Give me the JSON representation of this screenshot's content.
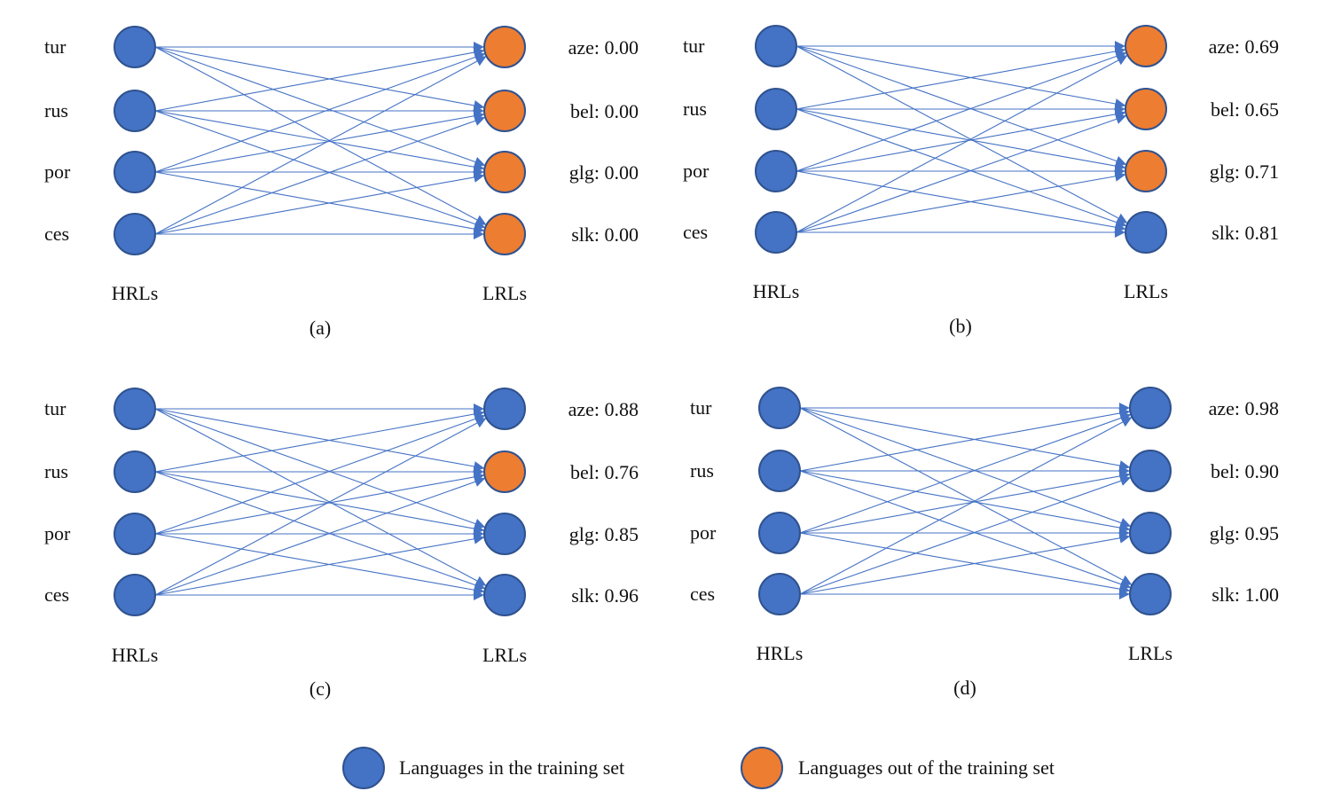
{
  "colors": {
    "in_training": "#4472C4",
    "out_of_training": "#ED7D31",
    "outline": "#2F528F",
    "edge": "#4472C4"
  },
  "panels": [
    {
      "caption": "(a)",
      "left_title": "HRLs",
      "right_title": "LRLs",
      "hrls": [
        "tur",
        "rus",
        "por",
        "ces"
      ],
      "lrls": [
        {
          "label": "aze: 0.00",
          "in_training": false
        },
        {
          "label": "bel: 0.00",
          "in_training": false
        },
        {
          "label": "glg: 0.00",
          "in_training": false
        },
        {
          "label": "slk: 0.00",
          "in_training": false
        }
      ]
    },
    {
      "caption": "(b)",
      "left_title": "HRLs",
      "right_title": "LRLs",
      "hrls": [
        "tur",
        "rus",
        "por",
        "ces"
      ],
      "lrls": [
        {
          "label": "aze: 0.69",
          "in_training": false
        },
        {
          "label": "bel: 0.65",
          "in_training": false
        },
        {
          "label": "glg: 0.71",
          "in_training": false
        },
        {
          "label": "slk: 0.81",
          "in_training": true
        }
      ]
    },
    {
      "caption": "(c)",
      "left_title": "HRLs",
      "right_title": "LRLs",
      "hrls": [
        "tur",
        "rus",
        "por",
        "ces"
      ],
      "lrls": [
        {
          "label": "aze: 0.88",
          "in_training": true
        },
        {
          "label": "bel: 0.76",
          "in_training": false
        },
        {
          "label": "glg: 0.85",
          "in_training": true
        },
        {
          "label": "slk: 0.96",
          "in_training": true
        }
      ]
    },
    {
      "caption": "(d)",
      "left_title": "HRLs",
      "right_title": "LRLs",
      "hrls": [
        "tur",
        "rus",
        "por",
        "ces"
      ],
      "lrls": [
        {
          "label": "aze: 0.98",
          "in_training": true
        },
        {
          "label": "bel: 0.90",
          "in_training": true
        },
        {
          "label": "glg: 0.95",
          "in_training": true
        },
        {
          "label": "slk: 1.00",
          "in_training": true
        }
      ]
    }
  ],
  "legend": {
    "in_training": "Languages in the training set",
    "out_of_training": "Languages out of the training set"
  }
}
